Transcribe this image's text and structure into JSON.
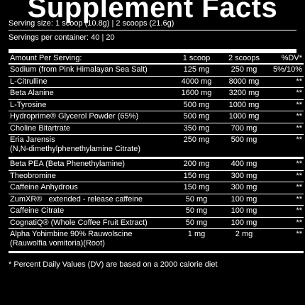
{
  "title": "Supplement Facts",
  "serving_size": "Serving size: 1 scoop (10.8g) | 2 scoops (21.6g)",
  "servings_per_container": "Servings per container: 40 | 20",
  "columns": {
    "amount": "Amount Per Serving:",
    "scoop1": "1 scoop",
    "scoop2": "2 scoops",
    "dv": "%DV*"
  },
  "rows": [
    {
      "name": "Sodium (from Pink Himalayan Sea Salt)",
      "s1": "125 mg",
      "s2": "250 mg",
      "dv": "5%/10%"
    },
    {
      "name": "L-Citrulline",
      "s1": "4000 mg",
      "s2": "8000 mg",
      "dv": "**"
    },
    {
      "name": "Beta Alanine",
      "s1": "1600 mg",
      "s2": "3200 mg",
      "dv": "**"
    },
    {
      "name": "L-Tyrosine",
      "s1": "500 mg",
      "s2": "1000 mg",
      "dv": "**"
    },
    {
      "name": "Hydroprime® Glycerol Powder (65%)",
      "s1": "500 mg",
      "s2": "1000 mg",
      "dv": "**"
    },
    {
      "name": "Choline Bitartrate",
      "s1": "350 mg",
      "s2": "700 mg",
      "dv": "**"
    },
    {
      "name": "Eria Jarensis",
      "name2": "(N,N-dimethylphenethylamine Citrate)",
      "s1": "250 mg",
      "s2": "500 mg",
      "dv": "**"
    },
    {
      "name": "Beta PEA (Beta Phenethylamine)",
      "s1": "200 mg",
      "s2": "400 mg",
      "dv": "**"
    },
    {
      "name": "Theobromine",
      "s1": "150 mg",
      "s2": "300 mg",
      "dv": "**"
    },
    {
      "name": "Caffeine Anhydrous",
      "s1": "150 mg",
      "s2": "300 mg",
      "dv": "**"
    },
    {
      "name": "ZumXR®   extended - release caffeine",
      "s1": "50 mg",
      "s2": "100 mg",
      "dv": "**"
    },
    {
      "name": "Caffeine Citrate",
      "s1": "50 mg",
      "s2": "100 mg",
      "dv": "**"
    },
    {
      "name": "CognatiQ® (Whole Coffee Fruit Extract)",
      "s1": "50 mg",
      "s2": "100 mg",
      "dv": "**"
    },
    {
      "name": "Alpha Yohimbine 90% Rauwolscine",
      "name2": "(Rauwolfia vomitoria)(Root)",
      "s1": "1 mg",
      "s2": "2 mg",
      "dv": "**"
    }
  ],
  "footnote": "* Percent Daily Values (DV) are based on a 2000 calorie diet"
}
